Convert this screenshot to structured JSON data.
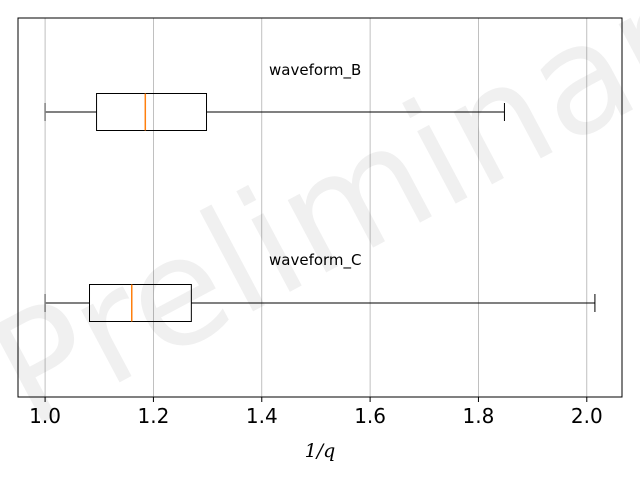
{
  "watermark": "Preliminary",
  "chart_data": {
    "type": "boxplot",
    "orientation": "horizontal",
    "xlabel": "1/q",
    "ylabel": "",
    "xlim": [
      0.95,
      2.065
    ],
    "xticks": [
      1.0,
      1.2,
      1.4,
      1.6,
      1.8,
      2.0
    ],
    "xtick_labels": [
      "1.0",
      "1.2",
      "1.4",
      "1.6",
      "1.8",
      "2.0"
    ],
    "grid": "x",
    "series": [
      {
        "name": "waveform_B",
        "whisker_low": 1.0,
        "q1": 1.095,
        "median": 1.185,
        "q3": 1.298,
        "whisker_high": 1.848
      },
      {
        "name": "waveform_C",
        "whisker_low": 1.0,
        "q1": 1.082,
        "median": 1.16,
        "q3": 1.27,
        "whisker_high": 2.015
      }
    ],
    "colors": {
      "box": "#000000",
      "median": "#ff7f0e",
      "grid": "#b0b0b0"
    }
  }
}
